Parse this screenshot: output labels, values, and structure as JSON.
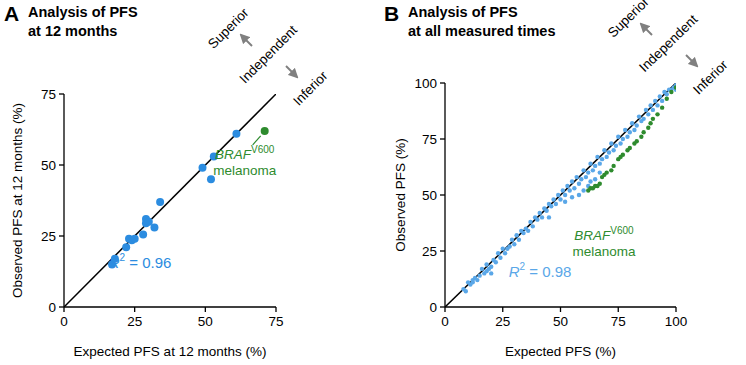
{
  "chart_data": [
    {
      "type": "scatter",
      "panel": "A",
      "title": "Analysis of PFS\nat 12 months",
      "x_label": "Expected PFS at 12 months (%)",
      "y_label": "Observed PFS at 12 months (%)",
      "xlim": [
        0,
        75
      ],
      "ylim": [
        0,
        75
      ],
      "xticks": [
        0,
        25,
        50,
        75
      ],
      "yticks": [
        0,
        25,
        50,
        75
      ],
      "reference_line": {
        "x": [
          0,
          75
        ],
        "values": [
          0,
          75
        ]
      },
      "direction_labels": [
        "Superior",
        "Independent",
        "Inferior"
      ],
      "r2": {
        "symbol": "R",
        "exponent": "2",
        "text": " = 0.96"
      },
      "annotation": {
        "gene": "BRAF",
        "variant": "V600",
        "text": "melanoma"
      },
      "series": [
        {
          "color": "#2b8ce0",
          "marker": "circle",
          "x": [
            17,
            18,
            22,
            23,
            24,
            25,
            28,
            29,
            29,
            30,
            32,
            34,
            49,
            52,
            53,
            61
          ],
          "values": [
            15,
            17,
            21,
            24,
            23.5,
            24,
            25.5,
            31,
            29.5,
            30,
            28,
            37,
            49,
            45,
            53,
            61
          ]
        },
        {
          "color": "#2e8b2e",
          "marker": "circle",
          "x": [
            71
          ],
          "values": [
            62
          ]
        }
      ]
    },
    {
      "type": "scatter",
      "panel": "B",
      "title": "Analysis of PFS\nat all measured times",
      "x_label": "Expected PFS (%)",
      "y_label": "Observed PFS (%)",
      "xlim": [
        0,
        100
      ],
      "ylim": [
        0,
        100
      ],
      "xticks": [
        0,
        25,
        50,
        75,
        100
      ],
      "yticks": [
        0,
        25,
        50,
        75,
        100
      ],
      "reference_line": {
        "x": [
          0,
          100
        ],
        "values": [
          0,
          100
        ]
      },
      "direction_labels": [
        "Superior",
        "Independent",
        "Inferior"
      ],
      "r2": {
        "symbol": "R",
        "exponent": "2",
        "text": " = 0.98"
      },
      "annotation": {
        "gene": "BRAF",
        "variant": "V600",
        "text": "melanoma"
      },
      "series": [
        {
          "color": "#5aa7e8",
          "marker": "circle",
          "x": [
            8,
            9,
            10,
            11,
            12,
            12,
            13,
            14,
            15,
            16,
            17,
            18,
            18,
            19,
            20,
            21,
            22,
            23,
            24,
            25,
            26,
            27,
            28,
            29,
            30,
            31,
            32,
            33,
            34,
            35,
            36,
            37,
            38,
            39,
            40,
            41,
            42,
            43,
            44,
            45,
            46,
            47,
            48,
            49,
            50,
            51,
            52,
            53,
            54,
            55,
            56,
            57,
            58,
            59,
            60,
            61,
            62,
            63,
            64,
            65,
            66,
            67,
            68,
            69,
            70,
            71,
            72,
            73,
            74,
            75,
            76,
            77,
            78,
            79,
            80,
            81,
            82,
            83,
            84,
            85,
            86,
            87,
            88,
            89,
            90,
            91,
            92,
            93,
            94,
            95,
            96,
            97,
            98,
            99,
            100,
            100,
            60,
            62,
            65,
            58,
            55,
            63,
            67,
            52,
            45,
            20
          ],
          "values": [
            8,
            7,
            11,
            10,
            12,
            11,
            13,
            12,
            14,
            17,
            15,
            16,
            19,
            17,
            18,
            21,
            20,
            24,
            22,
            26,
            24,
            26,
            27,
            30,
            28,
            32,
            30,
            34,
            33,
            35,
            34,
            38,
            36,
            40,
            39,
            42,
            40,
            44,
            43,
            46,
            45,
            48,
            46,
            50,
            48,
            52,
            50,
            54,
            52,
            56,
            53,
            58,
            55,
            57,
            61,
            58,
            60,
            64,
            61,
            63,
            67,
            64,
            66,
            70,
            67,
            69,
            73,
            70,
            72,
            76,
            73,
            75,
            79,
            76,
            78,
            82,
            79,
            81,
            85,
            83,
            84,
            88,
            86,
            90,
            88,
            92,
            90,
            94,
            92,
            96,
            95,
            97,
            97,
            98,
            99,
            97,
            52,
            54,
            57,
            50,
            49,
            56,
            60,
            47,
            40,
            15
          ]
        },
        {
          "color": "#2e8b2e",
          "marker": "circle",
          "x": [
            62,
            63,
            64,
            65,
            66,
            67,
            68,
            69,
            70,
            72,
            73,
            75,
            76,
            77,
            79,
            80,
            82,
            83,
            85,
            86,
            88,
            89,
            90,
            92,
            94,
            96,
            98,
            100
          ],
          "values": [
            52,
            53,
            53,
            54,
            54,
            55,
            58,
            59,
            60,
            61,
            63,
            66,
            67,
            68,
            70,
            71,
            73,
            74,
            76,
            78,
            80,
            82,
            84,
            86,
            89,
            93,
            96,
            98
          ]
        }
      ]
    }
  ]
}
